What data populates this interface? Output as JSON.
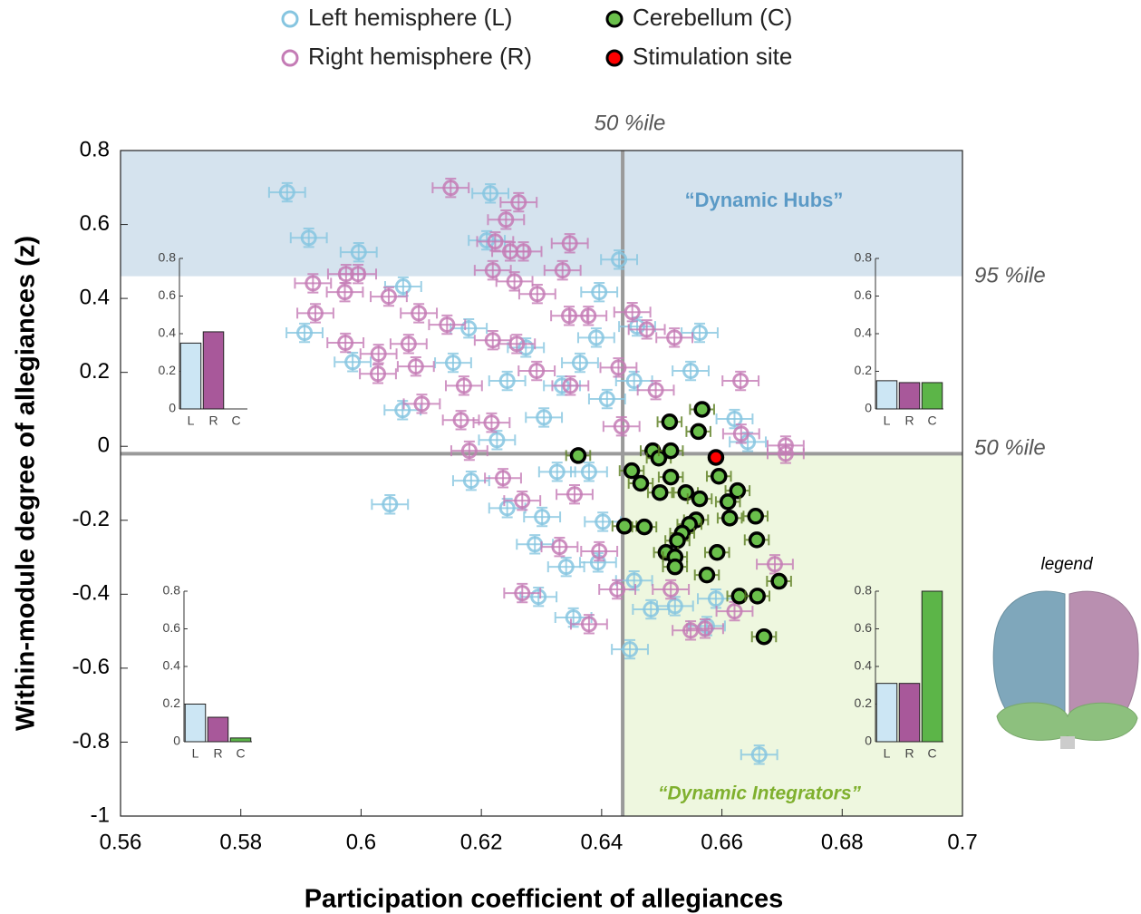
{
  "chart_data": {
    "type": "scatter",
    "x_label": "Participation coefficient of allegiances",
    "y_label": "Within-module degree of allegiances (z)",
    "xlim": [
      0.56,
      0.7
    ],
    "xticks": [
      0.56,
      0.58,
      0.6,
      0.62,
      0.64,
      0.66,
      0.68,
      0.7
    ],
    "ylim": [
      -1,
      0.8
    ],
    "yticks": [
      0.8,
      0.6,
      0.4,
      0.2,
      0,
      -0.2,
      -0.4,
      -0.6,
      -0.8,
      -1
    ],
    "legend": "top",
    "thresholds": {
      "x": 0.6435,
      "y": -0.02,
      "y_high": 0.46
    },
    "annotations": {
      "x_median": "50 %ile",
      "y_high": "95 %ile",
      "y_median": "50 %ile",
      "hubs": "“Dynamic Hubs”",
      "integrators": "“Dynamic Integrators”",
      "brain": "legend"
    },
    "series": [
      {
        "name": "Left hemisphere (L)",
        "color": "#86c5e0",
        "filled": false,
        "x_error": 0.003,
        "y_error": 0.025,
        "x": [
          0.5877,
          0.5913,
          0.5996,
          0.6215,
          0.6209,
          0.6429,
          0.5906,
          0.5986,
          0.6048,
          0.607,
          0.6069,
          0.6179,
          0.6226,
          0.6274,
          0.6304,
          0.6334,
          0.6391,
          0.6396,
          0.6459,
          0.6563,
          0.6548,
          0.6621,
          0.6643,
          0.6447,
          0.6662,
          0.6295,
          0.6353,
          0.6482,
          0.6575,
          0.6243,
          0.6289,
          0.6341,
          0.6394,
          0.6402,
          0.6379,
          0.6326,
          0.6183,
          0.6301,
          0.6454,
          0.6522,
          0.659,
          0.6409,
          0.6454,
          0.6364,
          0.6243,
          0.6153
        ],
        "values": [
          0.687,
          0.564,
          0.525,
          0.684,
          0.557,
          0.505,
          0.307,
          0.228,
          -0.157,
          0.432,
          0.098,
          0.319,
          0.017,
          0.267,
          0.078,
          0.164,
          0.294,
          0.417,
          0.324,
          0.307,
          0.204,
          0.074,
          0.012,
          -0.549,
          -0.834,
          -0.407,
          -0.463,
          -0.441,
          -0.486,
          -0.167,
          -0.265,
          -0.326,
          -0.314,
          -0.204,
          -0.069,
          -0.069,
          -0.093,
          -0.191,
          -0.363,
          -0.432,
          -0.412,
          0.128,
          0.177,
          0.226,
          0.177,
          0.226
        ]
      },
      {
        "name": "Right hemisphere (R)",
        "color": "#c47bb5",
        "filled": false,
        "x_error": 0.003,
        "y_error": 0.025,
        "x": [
          0.6149,
          0.6262,
          0.6241,
          0.6223,
          0.6248,
          0.627,
          0.6347,
          0.6335,
          0.6219,
          0.6255,
          0.6293,
          0.592,
          0.5975,
          0.5995,
          0.5924,
          0.5973,
          0.6046,
          0.6096,
          0.6143,
          0.5974,
          0.6029,
          0.6079,
          0.6091,
          0.6028,
          0.6219,
          0.6259,
          0.6346,
          0.6378,
          0.6451,
          0.6475,
          0.6521,
          0.6428,
          0.6348,
          0.6292,
          0.6171,
          0.6101,
          0.6166,
          0.618,
          0.6236,
          0.6268,
          0.6355,
          0.6217,
          0.633,
          0.6396,
          0.6268,
          0.6379,
          0.6548,
          0.6572,
          0.6631,
          0.6632,
          0.6706,
          0.6706,
          0.6433,
          0.649,
          0.6515,
          0.6621,
          0.6688,
          0.6426
        ],
        "values": [
          0.699,
          0.66,
          0.613,
          0.554,
          0.527,
          0.527,
          0.549,
          0.476,
          0.476,
          0.446,
          0.412,
          0.441,
          0.466,
          0.466,
          0.36,
          0.417,
          0.405,
          0.36,
          0.329,
          0.28,
          0.25,
          0.277,
          0.216,
          0.196,
          0.287,
          0.277,
          0.353,
          0.353,
          0.363,
          0.316,
          0.294,
          0.213,
          0.164,
          0.204,
          0.164,
          0.115,
          0.071,
          -0.012,
          -0.086,
          -0.147,
          -0.13,
          0.064,
          -0.272,
          -0.284,
          -0.397,
          -0.481,
          -0.498,
          -0.493,
          0.177,
          0.034,
          0.002,
          -0.02,
          0.054,
          0.152,
          -0.387,
          -0.446,
          -0.319,
          -0.387
        ]
      },
      {
        "name": "Cerebellum (C)",
        "color": "#6abf4b",
        "edgecolor": "#000000",
        "filled": true,
        "x_error": 0.002,
        "y_error": 0.015,
        "x": [
          0.6361,
          0.6513,
          0.6567,
          0.6561,
          0.645,
          0.6485,
          0.6495,
          0.6515,
          0.6465,
          0.6515,
          0.6497,
          0.654,
          0.6563,
          0.6595,
          0.6626,
          0.661,
          0.6613,
          0.6557,
          0.6546,
          0.6534,
          0.6526,
          0.6438,
          0.6471,
          0.6507,
          0.6522,
          0.6522,
          0.6592,
          0.6656,
          0.6658,
          0.6575,
          0.6629,
          0.6659,
          0.6695,
          0.667
        ],
        "values": [
          -0.025,
          0.066,
          0.1,
          0.04,
          -0.066,
          -0.012,
          -0.032,
          -0.012,
          -0.1,
          -0.083,
          -0.125,
          -0.125,
          -0.142,
          -0.081,
          -0.12,
          -0.15,
          -0.194,
          -0.199,
          -0.211,
          -0.235,
          -0.255,
          -0.216,
          -0.218,
          -0.287,
          -0.299,
          -0.326,
          -0.287,
          -0.189,
          -0.253,
          -0.348,
          -0.405,
          -0.405,
          -0.365,
          -0.515
        ]
      },
      {
        "name": "Stimulation site",
        "color": "#ff0000",
        "edgecolor": "#000000",
        "filled": true,
        "x": [
          0.659
        ],
        "values": [
          -0.03
        ]
      }
    ],
    "insets": [
      {
        "categories": [
          "L",
          "R",
          "C"
        ],
        "values": [
          0.35,
          0.41,
          0
        ],
        "colors": [
          "#cce6f4",
          "#a8589a",
          "#5cb548"
        ],
        "ylim": [
          0,
          0.8
        ],
        "yticks": [
          0,
          0.2,
          0.4,
          0.6,
          0.8
        ]
      },
      {
        "categories": [
          "L",
          "R",
          "C"
        ],
        "values": [
          0.15,
          0.14,
          0.14
        ],
        "colors": [
          "#cce6f4",
          "#a8589a",
          "#5cb548"
        ],
        "ylim": [
          0,
          0.8
        ],
        "yticks": [
          0,
          0.2,
          0.4,
          0.6,
          0.8
        ]
      },
      {
        "categories": [
          "L",
          "R",
          "C"
        ],
        "values": [
          0.2,
          0.13,
          0.02
        ],
        "colors": [
          "#cce6f4",
          "#a8589a",
          "#5cb548"
        ],
        "ylim": [
          0,
          0.8
        ],
        "yticks": [
          0,
          0.2,
          0.4,
          0.6,
          0.8
        ]
      },
      {
        "categories": [
          "L",
          "R",
          "C"
        ],
        "values": [
          0.31,
          0.31,
          0.8
        ],
        "colors": [
          "#cce6f4",
          "#a8589a",
          "#5cb548"
        ],
        "ylim": [
          0,
          0.8
        ],
        "yticks": [
          0,
          0.2,
          0.4,
          0.6,
          0.8
        ]
      }
    ]
  }
}
